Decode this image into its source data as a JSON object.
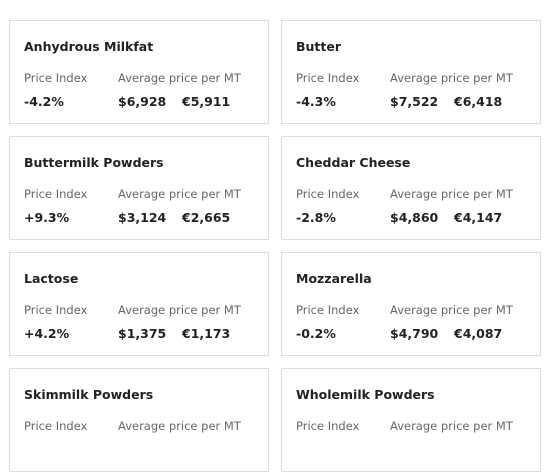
{
  "labels": {
    "index": "Price Index",
    "avg": "Average price per MT"
  },
  "cards": [
    {
      "title": "Anhydrous Milkfat",
      "index": "-4.2%",
      "usd": "$6,928",
      "eur": "€5,911"
    },
    {
      "title": "Butter",
      "index": "-4.3%",
      "usd": "$7,522",
      "eur": "€6,418"
    },
    {
      "title": "Buttermilk Powders",
      "index": "+9.3%",
      "usd": "$3,124",
      "eur": "€2,665"
    },
    {
      "title": "Cheddar Cheese",
      "index": "-2.8%",
      "usd": "$4,860",
      "eur": "€4,147"
    },
    {
      "title": "Lactose",
      "index": "+4.2%",
      "usd": "$1,375",
      "eur": "€1,173"
    },
    {
      "title": "Mozzarella",
      "index": "-0.2%",
      "usd": "$4,790",
      "eur": "€4,087"
    },
    {
      "title": "Skimmilk Powders"
    },
    {
      "title": "Wholemilk Powders"
    }
  ]
}
